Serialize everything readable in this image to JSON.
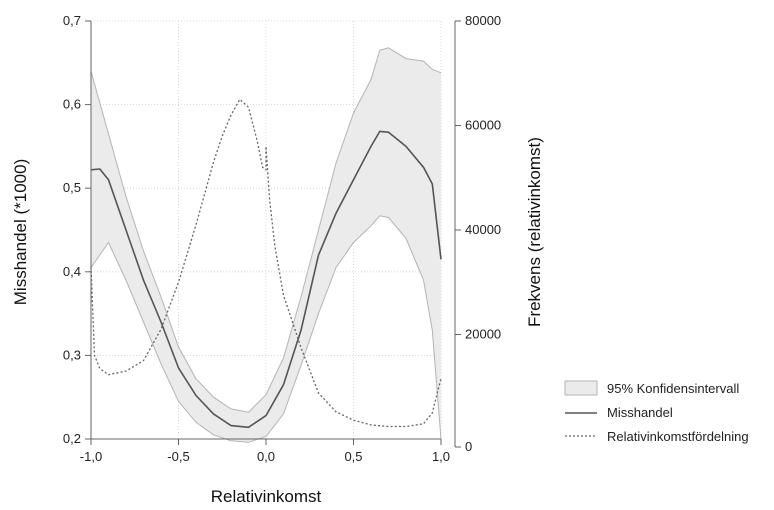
{
  "chart_data": {
    "type": "line",
    "xlabel": "Relativinkomst",
    "ylabel_left": "Misshandel (*1000)",
    "ylabel_right": "Frekvens (relativinkomst)",
    "xlim": [
      -1.0,
      1.0
    ],
    "ylim_left": [
      0.2,
      0.7
    ],
    "ylim_right": [
      0,
      80000
    ],
    "x_ticks": [
      {
        "value": -1.0,
        "label": "-1,0"
      },
      {
        "value": -0.5,
        "label": "-0,5"
      },
      {
        "value": 0.0,
        "label": "0,0"
      },
      {
        "value": 0.5,
        "label": "0,5"
      },
      {
        "value": 1.0,
        "label": "1,0"
      }
    ],
    "y_left_ticks": [
      {
        "value": 0.2,
        "label": "0,2"
      },
      {
        "value": 0.3,
        "label": "0,3"
      },
      {
        "value": 0.4,
        "label": "0,4"
      },
      {
        "value": 0.5,
        "label": "0,5"
      },
      {
        "value": 0.6,
        "label": "0,6"
      },
      {
        "value": 0.7,
        "label": "0,7"
      }
    ],
    "y_right_ticks": [
      {
        "value": 0,
        "label": "0"
      },
      {
        "value": 20000,
        "label": "20000"
      },
      {
        "value": 40000,
        "label": "40000"
      },
      {
        "value": 60000,
        "label": "60000"
      },
      {
        "value": 80000,
        "label": "80000"
      }
    ],
    "grid": true,
    "legend_position": "right",
    "series": [
      {
        "name": "95% Konfidensintervall",
        "kind": "band",
        "axis": "left",
        "color": "#ebebeb",
        "edge_color": "#b4b4b4",
        "x": [
          -1.0,
          -0.9,
          -0.8,
          -0.7,
          -0.6,
          -0.5,
          -0.4,
          -0.3,
          -0.2,
          -0.1,
          0.0,
          0.1,
          0.2,
          0.3,
          0.4,
          0.5,
          0.6,
          0.65,
          0.7,
          0.8,
          0.9,
          0.95,
          1.0
        ],
        "lower": [
          0.405,
          0.435,
          0.39,
          0.34,
          0.29,
          0.245,
          0.22,
          0.205,
          0.198,
          0.196,
          0.203,
          0.23,
          0.288,
          0.35,
          0.405,
          0.435,
          0.455,
          0.467,
          0.465,
          0.44,
          0.39,
          0.33,
          0.2
        ],
        "upper": [
          0.64,
          0.565,
          0.49,
          0.425,
          0.37,
          0.31,
          0.272,
          0.25,
          0.236,
          0.232,
          0.253,
          0.297,
          0.37,
          0.45,
          0.53,
          0.59,
          0.63,
          0.665,
          0.668,
          0.655,
          0.652,
          0.642,
          0.638
        ]
      },
      {
        "name": "Misshandel",
        "kind": "line",
        "axis": "left",
        "color": "#555555",
        "dash": "solid",
        "x": [
          -1.0,
          -0.95,
          -0.9,
          -0.8,
          -0.7,
          -0.6,
          -0.5,
          -0.4,
          -0.3,
          -0.2,
          -0.1,
          0.0,
          0.1,
          0.2,
          0.3,
          0.4,
          0.5,
          0.6,
          0.65,
          0.7,
          0.8,
          0.9,
          0.95,
          1.0
        ],
        "y": [
          0.522,
          0.523,
          0.51,
          0.45,
          0.39,
          0.34,
          0.285,
          0.252,
          0.23,
          0.216,
          0.214,
          0.228,
          0.265,
          0.33,
          0.42,
          0.47,
          0.51,
          0.55,
          0.568,
          0.567,
          0.55,
          0.525,
          0.505,
          0.415
        ]
      },
      {
        "name": "Relativinkomstfördelning",
        "kind": "line",
        "axis": "right",
        "color": "#666666",
        "dash": "dotted",
        "x": [
          -1.0,
          -0.98,
          -0.95,
          -0.9,
          -0.8,
          -0.7,
          -0.6,
          -0.5,
          -0.4,
          -0.3,
          -0.25,
          -0.2,
          -0.15,
          -0.1,
          -0.05,
          -0.02,
          0.0,
          0.0,
          0.02,
          0.05,
          0.1,
          0.2,
          0.3,
          0.4,
          0.5,
          0.6,
          0.7,
          0.8,
          0.9,
          0.95,
          0.98,
          1.0
        ],
        "y": [
          33000,
          16000,
          13500,
          12300,
          13000,
          15000,
          21000,
          30000,
          41000,
          53000,
          58000,
          62000,
          65000,
          63500,
          57000,
          52000,
          51500,
          56000,
          46000,
          37000,
          27500,
          17500,
          8800,
          5200,
          3600,
          2700,
          2400,
          2400,
          2900,
          5000,
          9000,
          11500
        ]
      }
    ]
  }
}
